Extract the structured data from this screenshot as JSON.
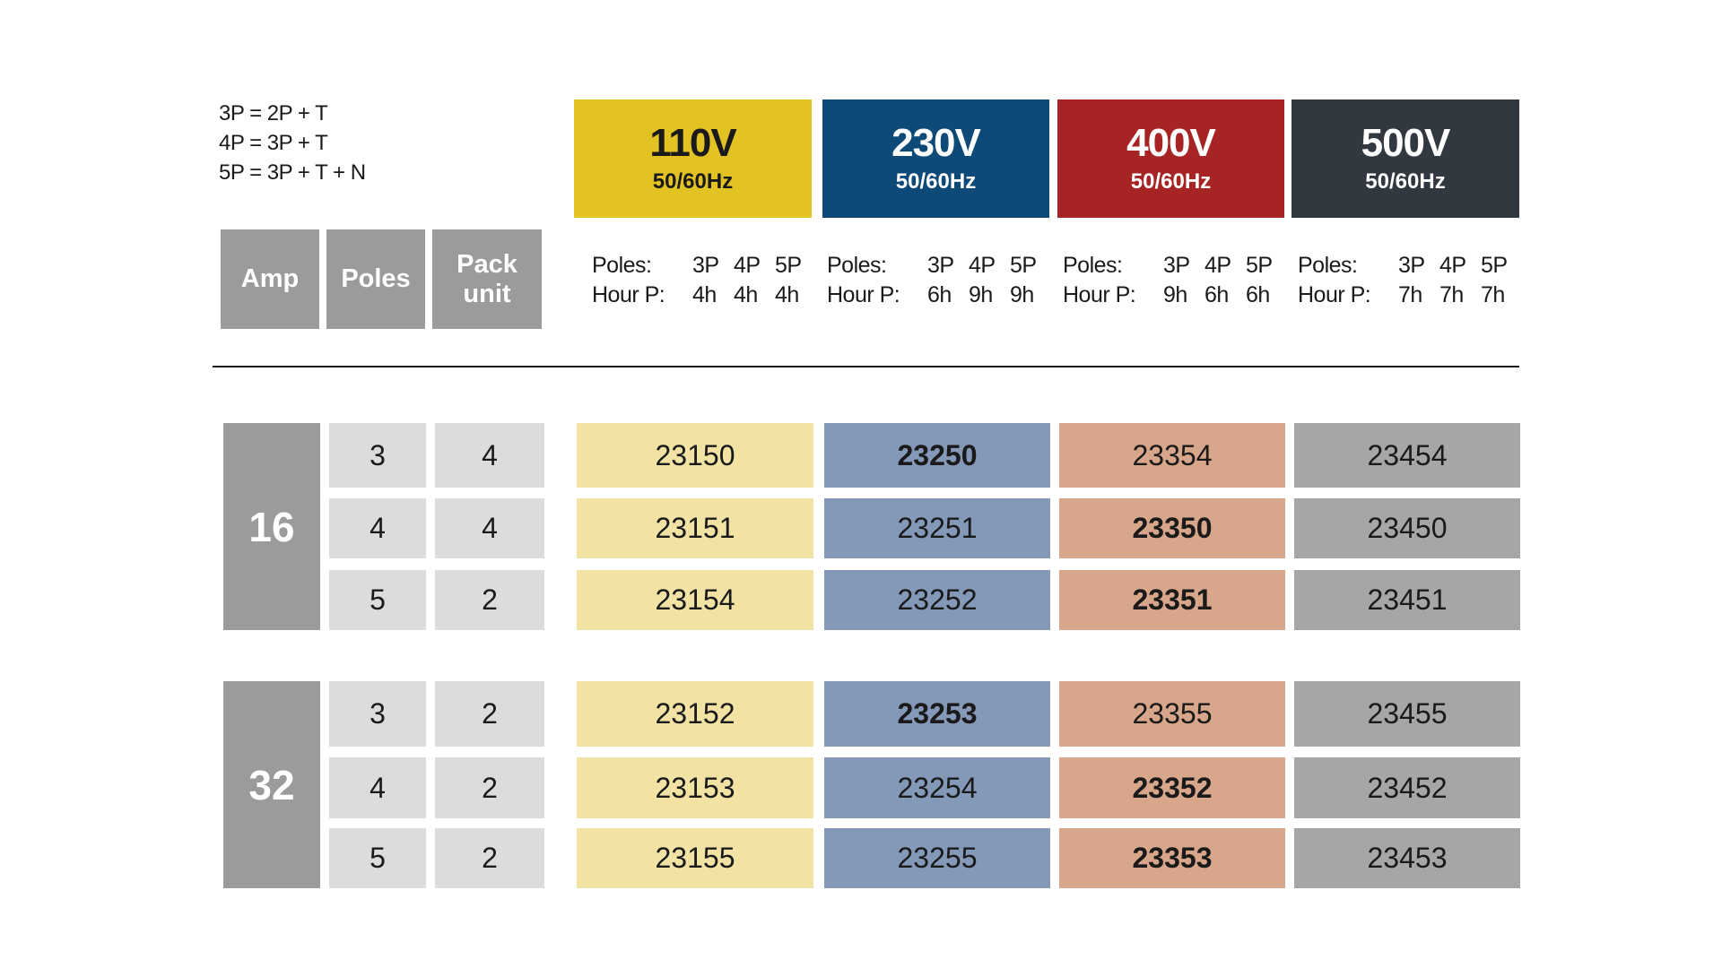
{
  "legend": [
    "3P = 2P + T",
    "4P = 3P + T",
    "5P = 3P + T + N"
  ],
  "voltages": [
    {
      "voltage": "110V",
      "frequency": "50/60Hz",
      "color": "#e3c323",
      "text_color": "#1a1a1a",
      "poles_label": "Poles:",
      "hours_label": "Hour P:",
      "poles": [
        "3P",
        "4P",
        "5P"
      ],
      "hours": [
        "4h",
        "4h",
        "4h"
      ]
    },
    {
      "voltage": "230V",
      "frequency": "50/60Hz",
      "color": "#0e4a78",
      "text_color": "#ffffff",
      "poles_label": "Poles:",
      "hours_label": "Hour P:",
      "poles": [
        "3P",
        "4P",
        "5P"
      ],
      "hours": [
        "6h",
        "9h",
        "9h"
      ]
    },
    {
      "voltage": "400V",
      "frequency": "50/60Hz",
      "color": "#a62424",
      "text_color": "#ffffff",
      "poles_label": "Poles:",
      "hours_label": "Hour P:",
      "poles": [
        "3P",
        "4P",
        "5P"
      ],
      "hours": [
        "9h",
        "6h",
        "6h"
      ]
    },
    {
      "voltage": "500V",
      "frequency": "50/60Hz",
      "color": "#323840",
      "text_color": "#ffffff",
      "poles_label": "Poles:",
      "hours_label": "Hour P:",
      "poles": [
        "3P",
        "4P",
        "5P"
      ],
      "hours": [
        "7h",
        "7h",
        "7h"
      ]
    }
  ],
  "column_headers": {
    "amp": "Amp",
    "poles": "Poles",
    "pack_line1": "Pack",
    "pack_line2": "unit"
  },
  "groups": [
    {
      "amp": "16",
      "rows": [
        {
          "poles": "3",
          "pack": "4",
          "codes": [
            "23150",
            "23250",
            "23354",
            "23454"
          ],
          "bold": [
            false,
            true,
            false,
            false
          ]
        },
        {
          "poles": "4",
          "pack": "4",
          "codes": [
            "23151",
            "23251",
            "23350",
            "23450"
          ],
          "bold": [
            false,
            false,
            true,
            false
          ]
        },
        {
          "poles": "5",
          "pack": "2",
          "codes": [
            "23154",
            "23252",
            "23351",
            "23451"
          ],
          "bold": [
            false,
            false,
            true,
            false
          ]
        }
      ]
    },
    {
      "amp": "32",
      "rows": [
        {
          "poles": "3",
          "pack": "2",
          "codes": [
            "23152",
            "23253",
            "23355",
            "23455"
          ],
          "bold": [
            false,
            true,
            false,
            false
          ]
        },
        {
          "poles": "4",
          "pack": "2",
          "codes": [
            "23153",
            "23254",
            "23352",
            "23452"
          ],
          "bold": [
            false,
            false,
            true,
            false
          ]
        },
        {
          "poles": "5",
          "pack": "2",
          "codes": [
            "23155",
            "23255",
            "23353",
            "23453"
          ],
          "bold": [
            false,
            false,
            true,
            false
          ]
        }
      ]
    }
  ]
}
